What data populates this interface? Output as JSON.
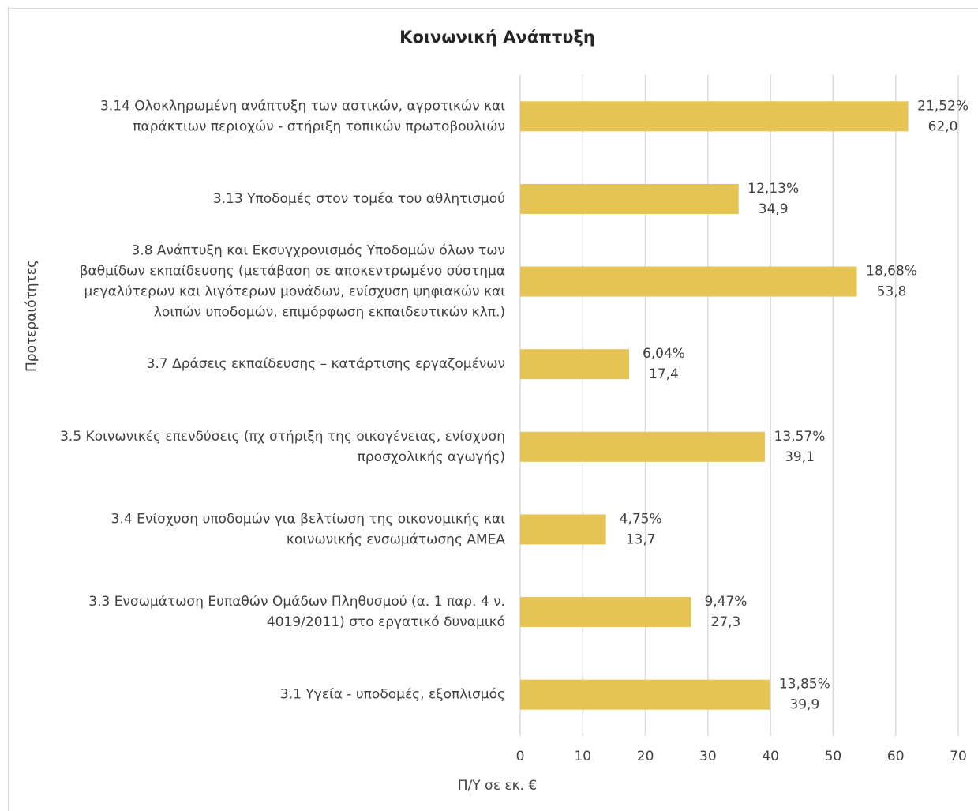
{
  "chart_data": {
    "type": "bar",
    "orientation": "horizontal",
    "title": "Κοινωνική Ανάπτυξη",
    "categories": [
      [
        "3.14 Ολοκληρωμένη ανάπτυξη των αστικών, αγροτικών και",
        "παράκτιων περιοχών - στήριξη τοπικών πρωτοβουλιών"
      ],
      [
        "3.13 Υποδομές στον τομέα του αθλητισμού"
      ],
      [
        "3.8 Ανάπτυξη και Εκσυγχρονισμός Υποδομών όλων των",
        "βαθμίδων εκπαίδευσης (μετάβαση σε αποκεντρωμένο σύστημα",
        "μεγαλύτερων και λιγότερων μονάδων, ενίσχυση ψηφιακών και",
        "λοιπών υποδομών, επιμόρφωση εκπαιδευτικών κλπ.)"
      ],
      [
        "3.7 Δράσεις εκπαίδευσης – κατάρτισης εργαζομένων"
      ],
      [
        "3.5 Κοινωνικές επενδύσεις (πχ στήριξη της οικογένειας, ενίσχυση",
        "προσχολικής αγωγής)"
      ],
      [
        "3.4 Ενίσχυση υποδομών για βελτίωση της οικονομικής και",
        "κοινωνικής ενσωμάτωσης ΑΜΕΑ"
      ],
      [
        "3.3 Ενσωμάτωση Ευπαθών Ομάδων Πληθυσμού (α. 1 παρ. 4 ν.",
        "4019/2011) στο εργατικό δυναμικό"
      ],
      [
        "3.1 Υγεία - υποδομές, εξοπλισμός"
      ]
    ],
    "values": [
      62.0,
      34.9,
      53.8,
      17.4,
      39.1,
      13.7,
      27.3,
      39.9
    ],
    "value_labels": [
      "62,0",
      "34,9",
      "53,8",
      "17,4",
      "39,1",
      "13,7",
      "27,3",
      "39,9"
    ],
    "share_labels": [
      "21,52%",
      "12,13%",
      "18,68%",
      "6,04%",
      "13,57%",
      "4,75%",
      "9,47%",
      "13,85%"
    ],
    "color": "#e5c454",
    "xlim": [
      0,
      70
    ],
    "xticks": [
      0,
      10,
      20,
      30,
      40,
      50,
      60,
      70
    ],
    "grid": true,
    "xlabel": "Π/Υ σε εκ. €",
    "ylabel": "Προτεραιότητες"
  }
}
